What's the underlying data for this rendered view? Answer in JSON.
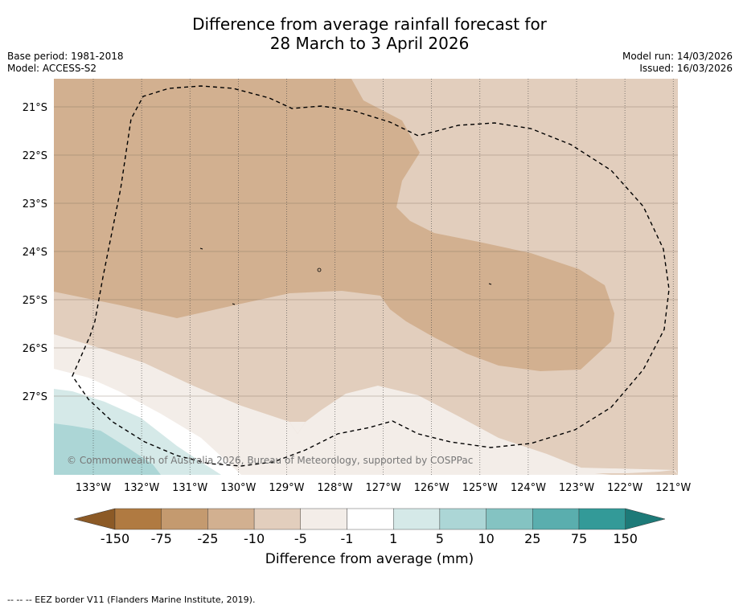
{
  "title": {
    "line1": "Difference from average rainfall forecast for",
    "line2": "28 March to 3 April 2026"
  },
  "meta_left": {
    "base_period": "Base period: 1981-2018",
    "model": "Model: ACCESS-S2"
  },
  "meta_right": {
    "model_run": "Model run: 14/03/2026",
    "issued": "Issued: 16/03/2026"
  },
  "map": {
    "lat_labels": [
      "21°S",
      "22°S",
      "23°S",
      "24°S",
      "25°S",
      "26°S",
      "27°S"
    ],
    "lon_labels": [
      "133°W",
      "132°W",
      "131°W",
      "130°W",
      "129°W",
      "128°W",
      "127°W",
      "126°W",
      "125°W",
      "124°W",
      "123°W",
      "122°W",
      "121°W"
    ],
    "copyright": "© Commonwealth of Australia 2026, Bureau of Meteorology, supported by COSPPac"
  },
  "colorbar": {
    "ticks": [
      "-150",
      "-75",
      "-25",
      "-10",
      "-5",
      "-1",
      "1",
      "5",
      "10",
      "25",
      "75",
      "150"
    ],
    "colors": [
      "#b07a41",
      "#c49a6f",
      "#d2b090",
      "#e2cebd",
      "#f3ede8",
      "#ffffff",
      "#d5e9e8",
      "#acd6d6",
      "#84c3c2",
      "#5aaeae",
      "#339a98"
    ],
    "low_color": "#8c5a26",
    "high_color": "#1d7a78",
    "label": "Difference from average (mm)"
  },
  "footer": "--  --  -- EEZ border V11 (Flanders Marine Institute, 2019)."
}
